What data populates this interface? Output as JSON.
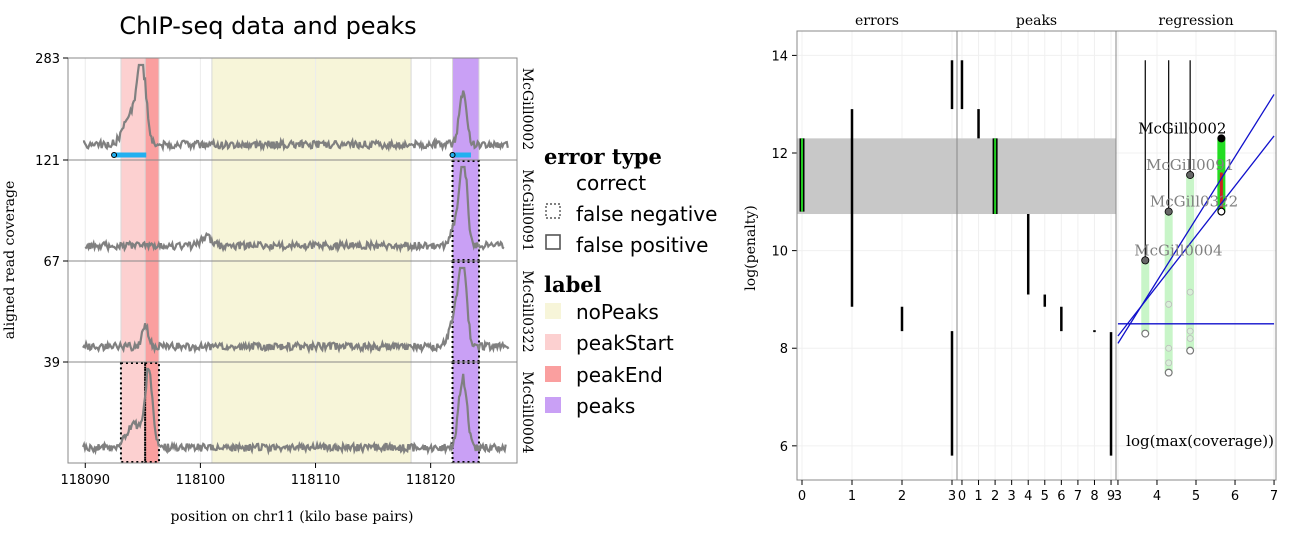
{
  "chart_data": [
    {
      "type": "line",
      "title": "ChIP-seq data and peaks",
      "xlabel": "position on chr11 (kilo base pairs)",
      "ylabel": "aligned read coverage",
      "xlim": [
        118088.5,
        118127.5
      ],
      "x_ticks": [
        "118090",
        "118100",
        "118110",
        "118120"
      ],
      "x_tick_values": [
        118090,
        118100,
        118110,
        118120
      ],
      "panels": [
        {
          "sample": "McGill0002",
          "ymax_label": "283",
          "ymax": 283,
          "peaks": [
            [
              118092.5,
              118095.3
            ],
            [
              118121.9,
              118123.5
            ]
          ]
        },
        {
          "sample": "McGill0091",
          "ymax_label": "121",
          "ymax": 121,
          "peaks": []
        },
        {
          "sample": "McGill0322",
          "ymax_label": "67",
          "ymax": 67,
          "peaks": []
        },
        {
          "sample": "McGill0004",
          "ymax_label": "39",
          "ymax": 39,
          "peaks": []
        }
      ],
      "label_regions": [
        {
          "label": "peakStart",
          "start": 118093.1,
          "end": 118095.2,
          "color": "#fcd0d0"
        },
        {
          "label": "peakEnd",
          "start": 118095.2,
          "end": 118096.4,
          "color": "#fa9f9f"
        },
        {
          "label": "noPeaks",
          "start": 118101.0,
          "end": 118118.3,
          "color": "#f7f5d9"
        },
        {
          "label": "peaks",
          "start": 118121.9,
          "end": 118124.2,
          "color": "#c9a0f5"
        }
      ],
      "error_boxes": [
        {
          "panel": 1,
          "region": 3,
          "error": "false negative"
        },
        {
          "panel": 2,
          "region": 3,
          "error": "false negative"
        },
        {
          "panel": 3,
          "region": 0,
          "error": "false negative"
        },
        {
          "panel": 3,
          "region": 1,
          "error": "false negative"
        },
        {
          "panel": 3,
          "region": 3,
          "error": "false negative"
        }
      ],
      "legend": {
        "error_title": "error type",
        "error_items": [
          "correct",
          "false negative",
          "false positive"
        ],
        "label_title": "label",
        "label_items": [
          {
            "name": "noPeaks",
            "color": "#f7f5d9"
          },
          {
            "name": "peakStart",
            "color": "#fcd0d0"
          },
          {
            "name": "peakEnd",
            "color": "#fa9f9f"
          },
          {
            "name": "peaks",
            "color": "#c9a0f5"
          }
        ]
      },
      "grid": true
    },
    {
      "type": "scatter",
      "ylabel": "log(penalty)",
      "ylim": [
        5.3,
        14.5
      ],
      "y_ticks": [
        "6",
        "8",
        "10",
        "12",
        "14"
      ],
      "y_tick_values": [
        6,
        8,
        10,
        12,
        14
      ],
      "selected_interval": [
        10.75,
        12.3
      ],
      "facets": [
        {
          "name": "errors",
          "xlim": [
            -0.1,
            3.1
          ],
          "x_ticks": [
            "0",
            "1",
            "2",
            "3"
          ],
          "x_tick_values": [
            0,
            1,
            2,
            3
          ],
          "segments": [
            {
              "x": 1,
              "y0": 8.85,
              "y1": 12.9
            },
            {
              "x": 3,
              "y0": 12.9,
              "y1": 13.9
            },
            {
              "x": 2,
              "y0": 8.35,
              "y1": 8.85
            },
            {
              "x": 3,
              "y0": 5.8,
              "y1": 8.35
            }
          ],
          "highlight": [
            {
              "x": 0,
              "y0": 10.8,
              "y1": 12.3
            }
          ]
        },
        {
          "name": "peaks",
          "xlim": [
            -0.3,
            9.3
          ],
          "x_ticks": [
            "0",
            "1",
            "2",
            "3",
            "4",
            "5",
            "6",
            "7",
            "8",
            "9"
          ],
          "x_tick_values": [
            0,
            1,
            2,
            3,
            4,
            5,
            6,
            7,
            8,
            9
          ],
          "segments": [
            {
              "x": 0,
              "y0": 12.9,
              "y1": 13.9
            },
            {
              "x": 1,
              "y0": 12.3,
              "y1": 12.9
            },
            {
              "x": 4,
              "y0": 9.1,
              "y1": 10.75
            },
            {
              "x": 5,
              "y0": 8.85,
              "y1": 9.1
            },
            {
              "x": 6,
              "y0": 8.35,
              "y1": 8.85
            },
            {
              "x": 8,
              "y0": 8.33,
              "y1": 8.37
            },
            {
              "x": 9,
              "y0": 5.8,
              "y1": 8.33
            }
          ],
          "highlight": [
            {
              "x": 2,
              "y0": 10.75,
              "y1": 12.3
            }
          ]
        },
        {
          "name": "regression",
          "xlim": [
            2.95,
            7.05
          ],
          "x_ticks": [
            "3",
            "4",
            "5",
            "6",
            "7"
          ],
          "x_tick_values": [
            3,
            4,
            5,
            6,
            7
          ],
          "annotation": "log(max(coverage))",
          "samples": [
            {
              "name": "McGill0002",
              "x": 5.65,
              "dark": true,
              "top": 12.3,
              "bottom": 10.8,
              "label_x": 4.65,
              "label_y": 12.4
            },
            {
              "name": "McGill0091",
              "x": 4.85,
              "dark": false,
              "top": 11.55,
              "bottom": 7.95,
              "label_x": 4.85,
              "label_y": 11.65
            },
            {
              "name": "McGill0322",
              "x": 4.3,
              "dark": false,
              "top": 10.8,
              "bottom": 7.5,
              "label_x": 4.95,
              "label_y": 10.9
            },
            {
              "name": "McGill0004",
              "x": 3.7,
              "dark": false,
              "top": 9.8,
              "bottom": 8.3,
              "label_x": 4.55,
              "label_y": 9.9
            }
          ],
          "mid_points": [
            {
              "x": 4.3,
              "y": 8.9
            },
            {
              "x": 4.3,
              "y": 8.0
            },
            {
              "x": 4.3,
              "y": 7.7
            },
            {
              "x": 4.85,
              "y": 9.15
            },
            {
              "x": 4.85,
              "y": 8.35
            },
            {
              "x": 4.85,
              "y": 8.2
            }
          ],
          "vlines": [
            {
              "x": 3.7,
              "y0": 9.8,
              "y1": 13.9
            },
            {
              "x": 4.3,
              "y0": 10.8,
              "y1": 13.9
            },
            {
              "x": 4.85,
              "y0": 11.55,
              "y1": 13.9
            }
          ],
          "lines": [
            {
              "x0": 3.0,
              "y0": 8.5,
              "x1": 7.0,
              "y1": 8.5
            },
            {
              "x0": 3.0,
              "y0": 8.1,
              "x1": 7.0,
              "y1": 13.2
            },
            {
              "x0": 3.0,
              "y0": 8.25,
              "x1": 7.0,
              "y1": 12.35
            }
          ]
        }
      ],
      "grid": true
    }
  ]
}
